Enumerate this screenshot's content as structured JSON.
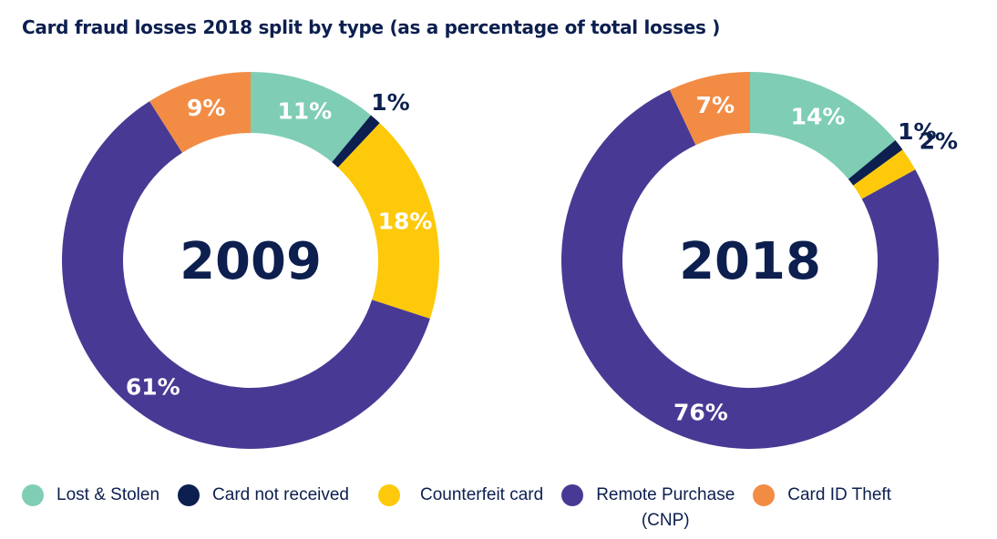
{
  "chart_data": [
    {
      "type": "pie",
      "title": "Card fraud losses 2018 split by type (as a percentage of total losses )",
      "center_label": "2009",
      "categories": [
        "Lost & Stolen",
        "Card not received",
        "Counterfeit card",
        "Remote Purchase (CNP)",
        "Card ID Theft"
      ],
      "values": [
        11,
        1,
        18,
        61,
        9
      ],
      "labels": [
        "11%",
        "1%",
        "18%",
        "61%",
        "9%"
      ]
    },
    {
      "type": "pie",
      "center_label": "2018",
      "categories": [
        "Lost & Stolen",
        "Card not received",
        "Counterfeit card",
        "Remote Purchase (CNP)",
        "Card ID Theft"
      ],
      "values": [
        14,
        1,
        2,
        76,
        7
      ],
      "labels": [
        "14%",
        "1%",
        "2%",
        "76%",
        "7%"
      ]
    }
  ],
  "title": "Card fraud losses 2018 split by type (as a percentage of total losses )",
  "legend": [
    {
      "label": "Lost & Stolen",
      "color": "#7fcdb5"
    },
    {
      "label": "Card not received",
      "color": "#0c1f4f"
    },
    {
      "label": "Counterfeit card",
      "color": "#fdc90a"
    },
    {
      "label": "Remote Purchase\n(CNP)",
      "color": "#483a94"
    },
    {
      "label": "Card ID Theft",
      "color": "#f28c45"
    }
  ]
}
